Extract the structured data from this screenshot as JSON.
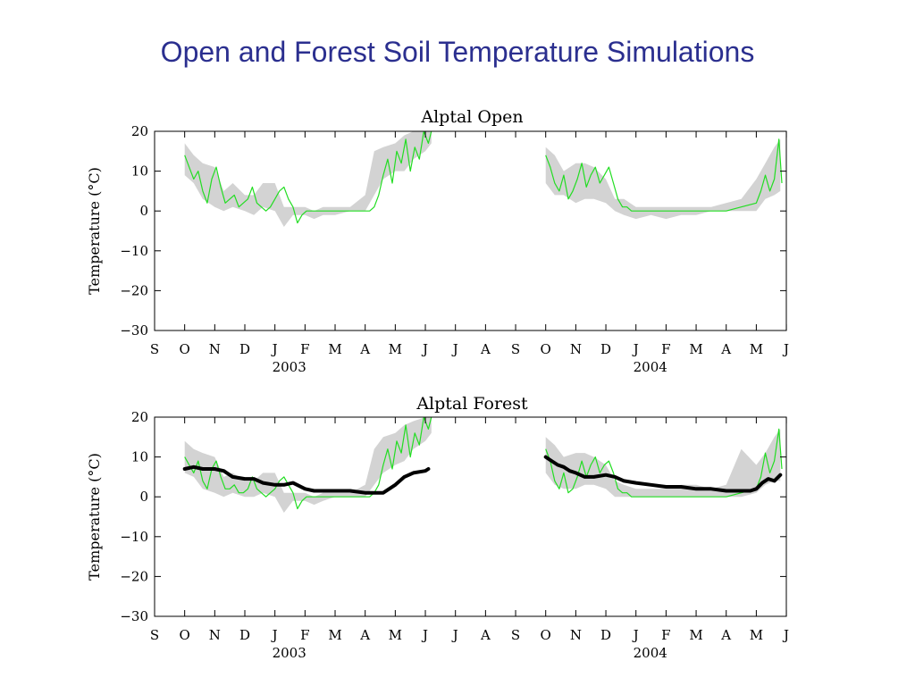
{
  "slide": {
    "title": "Open and Forest Soil Temperature Simulations"
  },
  "colors": {
    "title": "#2b2f8f",
    "observed_range": "#d3d3d3",
    "simulated": "#22dd22",
    "forest_line": "#000000"
  },
  "chart_data": [
    {
      "type": "line",
      "title": "Alptal Open",
      "ylabel": "Temperature (°C)",
      "xlabel": "",
      "ylim": [
        -30,
        20
      ],
      "yticks": [
        20,
        10,
        0,
        -10,
        -20,
        -30
      ],
      "ytick_labels": [
        "20",
        "10",
        "0",
        "−10",
        "−20",
        "−30"
      ],
      "month_ticks": [
        "S",
        "O",
        "N",
        "D",
        "J",
        "F",
        "M",
        "A",
        "M",
        "J",
        "J",
        "A",
        "S",
        "O",
        "N",
        "D",
        "J",
        "F",
        "M",
        "A",
        "M",
        "J"
      ],
      "year_labels": [
        {
          "label": "2003",
          "month_index": 4
        },
        {
          "label": "2004",
          "month_index": 16
        }
      ],
      "series": [
        {
          "role": "observed-range",
          "segments": [
            {
              "x": [
                1.0,
                1.3,
                1.6,
                2.0,
                2.3,
                2.6,
                3.0,
                3.3,
                3.6,
                4.0,
                4.3,
                4.6,
                5.0,
                5.3,
                5.6,
                6.0,
                6.5,
                7.0,
                7.3,
                7.6,
                8.0,
                8.3,
                8.6,
                9.0,
                9.2
              ],
              "low": [
                9,
                7,
                3,
                1,
                0,
                1,
                0,
                -1,
                1,
                0,
                -4,
                -1,
                -1,
                -2,
                -1,
                -1,
                0,
                0,
                4,
                8,
                10,
                10,
                13,
                15,
                17
              ],
              "high": [
                17,
                14,
                12,
                11,
                5,
                7,
                4,
                4,
                7,
                7,
                1,
                1,
                1,
                0,
                1,
                1,
                1,
                4,
                15,
                16,
                17,
                19,
                20,
                20,
                20
              ]
            },
            {
              "x": [
                13.0,
                13.3,
                13.6,
                14.0,
                14.3,
                14.6,
                15.0,
                15.3,
                15.6,
                16.0,
                16.5,
                17.0,
                17.5,
                18.0,
                18.5,
                19.0,
                19.5,
                20.0,
                20.3,
                20.6,
                20.8
              ],
              "low": [
                7,
                4,
                4,
                2,
                3,
                3,
                2,
                0,
                -1,
                -2,
                -1,
                -2,
                -1,
                -1,
                0,
                0,
                0,
                0,
                3,
                4,
                5
              ],
              "high": [
                16,
                14,
                10,
                12,
                12,
                11,
                8,
                3,
                3,
                1,
                1,
                1,
                1,
                1,
                1,
                2,
                3,
                8,
                12,
                16,
                18
              ]
            }
          ]
        },
        {
          "name": "",
          "role": "simulated",
          "segments": [
            {
              "x": [
                1.0,
                1.15,
                1.3,
                1.45,
                1.6,
                1.75,
                1.9,
                2.05,
                2.2,
                2.35,
                2.5,
                2.65,
                2.8,
                2.95,
                3.1,
                3.25,
                3.4,
                3.55,
                3.7,
                3.85,
                4.0,
                4.15,
                4.3,
                4.45,
                4.6,
                4.75,
                4.9,
                5.05,
                5.2,
                5.5,
                5.8,
                6.1,
                6.4,
                6.7,
                7.0,
                7.15,
                7.3,
                7.45,
                7.6,
                7.75,
                7.9,
                8.05,
                8.2,
                8.35,
                8.5,
                8.65,
                8.8,
                8.95,
                9.1,
                9.2
              ],
              "y": [
                14,
                11,
                8,
                10,
                5,
                2,
                8,
                11,
                6,
                2,
                3,
                4,
                1,
                2,
                3,
                6,
                2,
                1,
                0,
                1,
                3,
                5,
                6,
                3,
                1,
                -3,
                -1,
                0,
                0,
                0,
                0,
                0,
                0,
                0,
                0,
                0,
                1,
                4,
                9,
                13,
                7,
                15,
                12,
                18,
                10,
                16,
                13,
                20,
                17,
                20
              ]
            },
            {
              "x": [
                13.0,
                13.15,
                13.3,
                13.45,
                13.6,
                13.75,
                13.9,
                14.05,
                14.2,
                14.35,
                14.5,
                14.65,
                14.8,
                14.95,
                15.1,
                15.25,
                15.4,
                15.55,
                15.7,
                15.85,
                16.0,
                16.3,
                16.6,
                17.0,
                17.5,
                18.0,
                18.5,
                19.0,
                19.5,
                20.0,
                20.15,
                20.3,
                20.45,
                20.6,
                20.75,
                20.85
              ],
              "y": [
                14,
                11,
                7,
                5,
                9,
                3,
                5,
                8,
                12,
                6,
                9,
                11,
                7,
                9,
                11,
                7,
                3,
                1,
                1,
                0,
                0,
                0,
                0,
                0,
                0,
                0,
                0,
                0,
                1,
                2,
                5,
                9,
                5,
                8,
                18,
                7
              ]
            }
          ]
        }
      ]
    },
    {
      "type": "line",
      "title": "Alptal Forest",
      "ylabel": "Temperature (°C)",
      "xlabel": "",
      "ylim": [
        -30,
        20
      ],
      "yticks": [
        20,
        10,
        0,
        -10,
        -20,
        -30
      ],
      "ytick_labels": [
        "20",
        "10",
        "0",
        "−10",
        "−20",
        "−30"
      ],
      "month_ticks": [
        "S",
        "O",
        "N",
        "D",
        "J",
        "F",
        "M",
        "A",
        "M",
        "J",
        "J",
        "A",
        "S",
        "O",
        "N",
        "D",
        "J",
        "F",
        "M",
        "A",
        "M",
        "J"
      ],
      "year_labels": [
        {
          "label": "2003",
          "month_index": 4
        },
        {
          "label": "2004",
          "month_index": 16
        }
      ],
      "series": [
        {
          "role": "observed-range",
          "segments": [
            {
              "x": [
                1.0,
                1.3,
                1.6,
                2.0,
                2.3,
                2.6,
                3.0,
                3.3,
                3.6,
                4.0,
                4.3,
                4.6,
                5.0,
                5.3,
                5.6,
                6.0,
                6.5,
                7.0,
                7.3,
                7.6,
                8.0,
                8.3,
                8.6,
                9.0,
                9.2
              ],
              "low": [
                6,
                5,
                2,
                1,
                0,
                1,
                0,
                0,
                1,
                0,
                -4,
                -1,
                -1,
                -2,
                -1,
                0,
                0,
                0,
                3,
                6,
                8,
                9,
                12,
                14,
                16
              ],
              "high": [
                14,
                12,
                11,
                10,
                5,
                6,
                4,
                4,
                6,
                6,
                1,
                1,
                1,
                0,
                1,
                1,
                1,
                3,
                12,
                15,
                16,
                18,
                19,
                20,
                20
              ]
            },
            {
              "x": [
                13.0,
                13.3,
                13.6,
                14.0,
                14.3,
                14.6,
                15.0,
                15.3,
                15.6,
                16.0,
                16.5,
                17.0,
                17.5,
                18.0,
                18.5,
                19.0,
                19.5,
                20.0,
                20.3,
                20.6,
                20.8
              ],
              "low": [
                6,
                3,
                2,
                2,
                3,
                3,
                2,
                0,
                0,
                0,
                0,
                0,
                0,
                0,
                0,
                0,
                0,
                1,
                3,
                4,
                4
              ],
              "high": [
                15,
                13,
                10,
                11,
                11,
                10,
                8,
                4,
                3,
                2,
                2,
                2,
                3,
                3,
                2,
                3,
                12,
                8,
                11,
                15,
                17
              ]
            }
          ]
        },
        {
          "role": "simulated",
          "segments": [
            {
              "x": [
                1.0,
                1.15,
                1.3,
                1.45,
                1.6,
                1.75,
                1.9,
                2.05,
                2.2,
                2.35,
                2.5,
                2.65,
                2.8,
                2.95,
                3.1,
                3.25,
                3.4,
                3.55,
                3.7,
                3.85,
                4.0,
                4.15,
                4.3,
                4.45,
                4.6,
                4.75,
                4.9,
                5.05,
                5.2,
                5.5,
                5.8,
                6.1,
                6.4,
                6.7,
                7.0,
                7.15,
                7.3,
                7.45,
                7.6,
                7.75,
                7.9,
                8.05,
                8.2,
                8.35,
                8.5,
                8.65,
                8.8,
                8.95,
                9.1,
                9.2
              ],
              "y": [
                10,
                8,
                6,
                9,
                4,
                2,
                7,
                9,
                5,
                2,
                2,
                3,
                1,
                1,
                2,
                5,
                2,
                1,
                0,
                1,
                2,
                4,
                5,
                3,
                1,
                -3,
                -1,
                0,
                0,
                0,
                0,
                0,
                0,
                0,
                0,
                0,
                1,
                3,
                8,
                12,
                7,
                14,
                11,
                18,
                10,
                16,
                13,
                20,
                17,
                20
              ]
            },
            {
              "x": [
                13.0,
                13.15,
                13.3,
                13.45,
                13.6,
                13.75,
                13.9,
                14.05,
                14.2,
                14.35,
                14.5,
                14.65,
                14.8,
                14.95,
                15.1,
                15.25,
                15.4,
                15.55,
                15.7,
                15.85,
                16.0,
                16.3,
                16.6,
                17.0,
                17.5,
                18.0,
                18.5,
                19.0,
                19.5,
                20.0,
                20.15,
                20.3,
                20.45,
                20.6,
                20.75,
                20.85
              ],
              "y": [
                12,
                9,
                4,
                2,
                6,
                1,
                2,
                5,
                9,
                5,
                8,
                10,
                6,
                8,
                9,
                6,
                2,
                1,
                1,
                0,
                0,
                0,
                0,
                0,
                0,
                0,
                0,
                0,
                1,
                2,
                5,
                11,
                6,
                9,
                17,
                7
              ]
            }
          ]
        },
        {
          "role": "forest-line",
          "segments": [
            {
              "x": [
                1.0,
                1.3,
                1.6,
                2.0,
                2.3,
                2.6,
                3.0,
                3.3,
                3.6,
                4.0,
                4.3,
                4.6,
                5.0,
                5.3,
                5.6,
                6.0,
                6.5,
                7.0,
                7.3,
                7.6,
                8.0,
                8.3,
                8.6,
                9.0,
                9.1
              ],
              "y": [
                7,
                7.5,
                7,
                7,
                6.5,
                5,
                4.5,
                4.5,
                3.5,
                3,
                3,
                3.5,
                2,
                1.5,
                1.5,
                1.5,
                1.5,
                1,
                1,
                1,
                3,
                5,
                6,
                6.5,
                7
              ]
            },
            {
              "x": [
                13.0,
                13.2,
                13.4,
                13.6,
                13.8,
                14.0,
                14.3,
                14.6,
                15.0,
                15.3,
                15.6,
                16.0,
                16.5,
                17.0,
                17.5,
                18.0,
                18.5,
                19.0,
                19.5,
                19.8,
                20.0,
                20.2,
                20.4,
                20.6,
                20.8
              ],
              "y": [
                10,
                9,
                8,
                7.5,
                6.5,
                6,
                5,
                5,
                5.5,
                5,
                4,
                3.5,
                3,
                2.5,
                2.5,
                2,
                2,
                1.5,
                1.5,
                1.5,
                2,
                3.5,
                4.5,
                4,
                5.5
              ]
            }
          ]
        }
      ]
    }
  ]
}
